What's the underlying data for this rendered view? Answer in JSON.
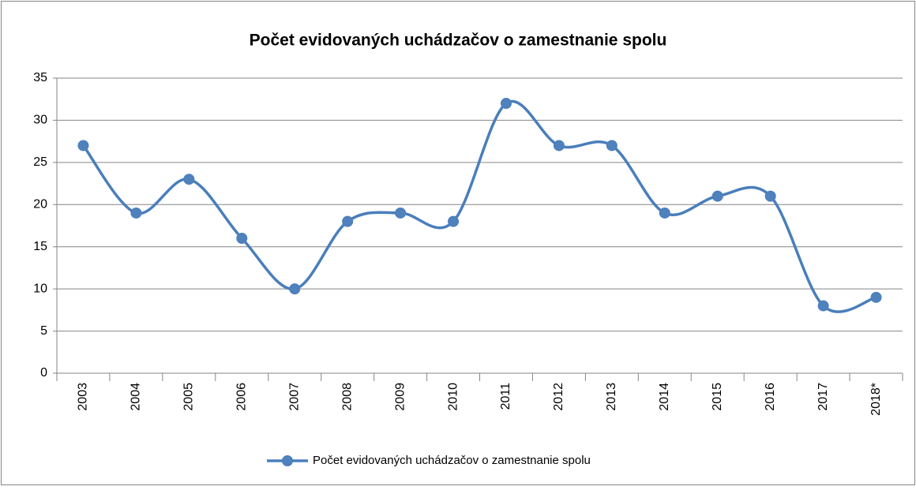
{
  "chart_data": {
    "type": "line",
    "title": "Počet evidovaných uchádzačov o zamestnanie spolu",
    "categories": [
      "2003",
      "2004",
      "2005",
      "2006",
      "2007",
      "2008",
      "2009",
      "2010",
      "2011",
      "2012",
      "2013",
      "2014",
      "2015",
      "2016",
      "2017",
      "2018*"
    ],
    "series": [
      {
        "name": "Počet evidovaných uchádzačov o zamestnanie spolu",
        "color": "#4a7ebb",
        "values": [
          27,
          19,
          23,
          16,
          10,
          18,
          19,
          18,
          32,
          27,
          27,
          19,
          21,
          21,
          8,
          9
        ]
      }
    ],
    "ylim": [
      0,
      35
    ],
    "yticks": [
      0,
      5,
      10,
      15,
      20,
      25,
      30,
      35
    ],
    "grid": true,
    "smooth": true,
    "legend": "bottom"
  }
}
